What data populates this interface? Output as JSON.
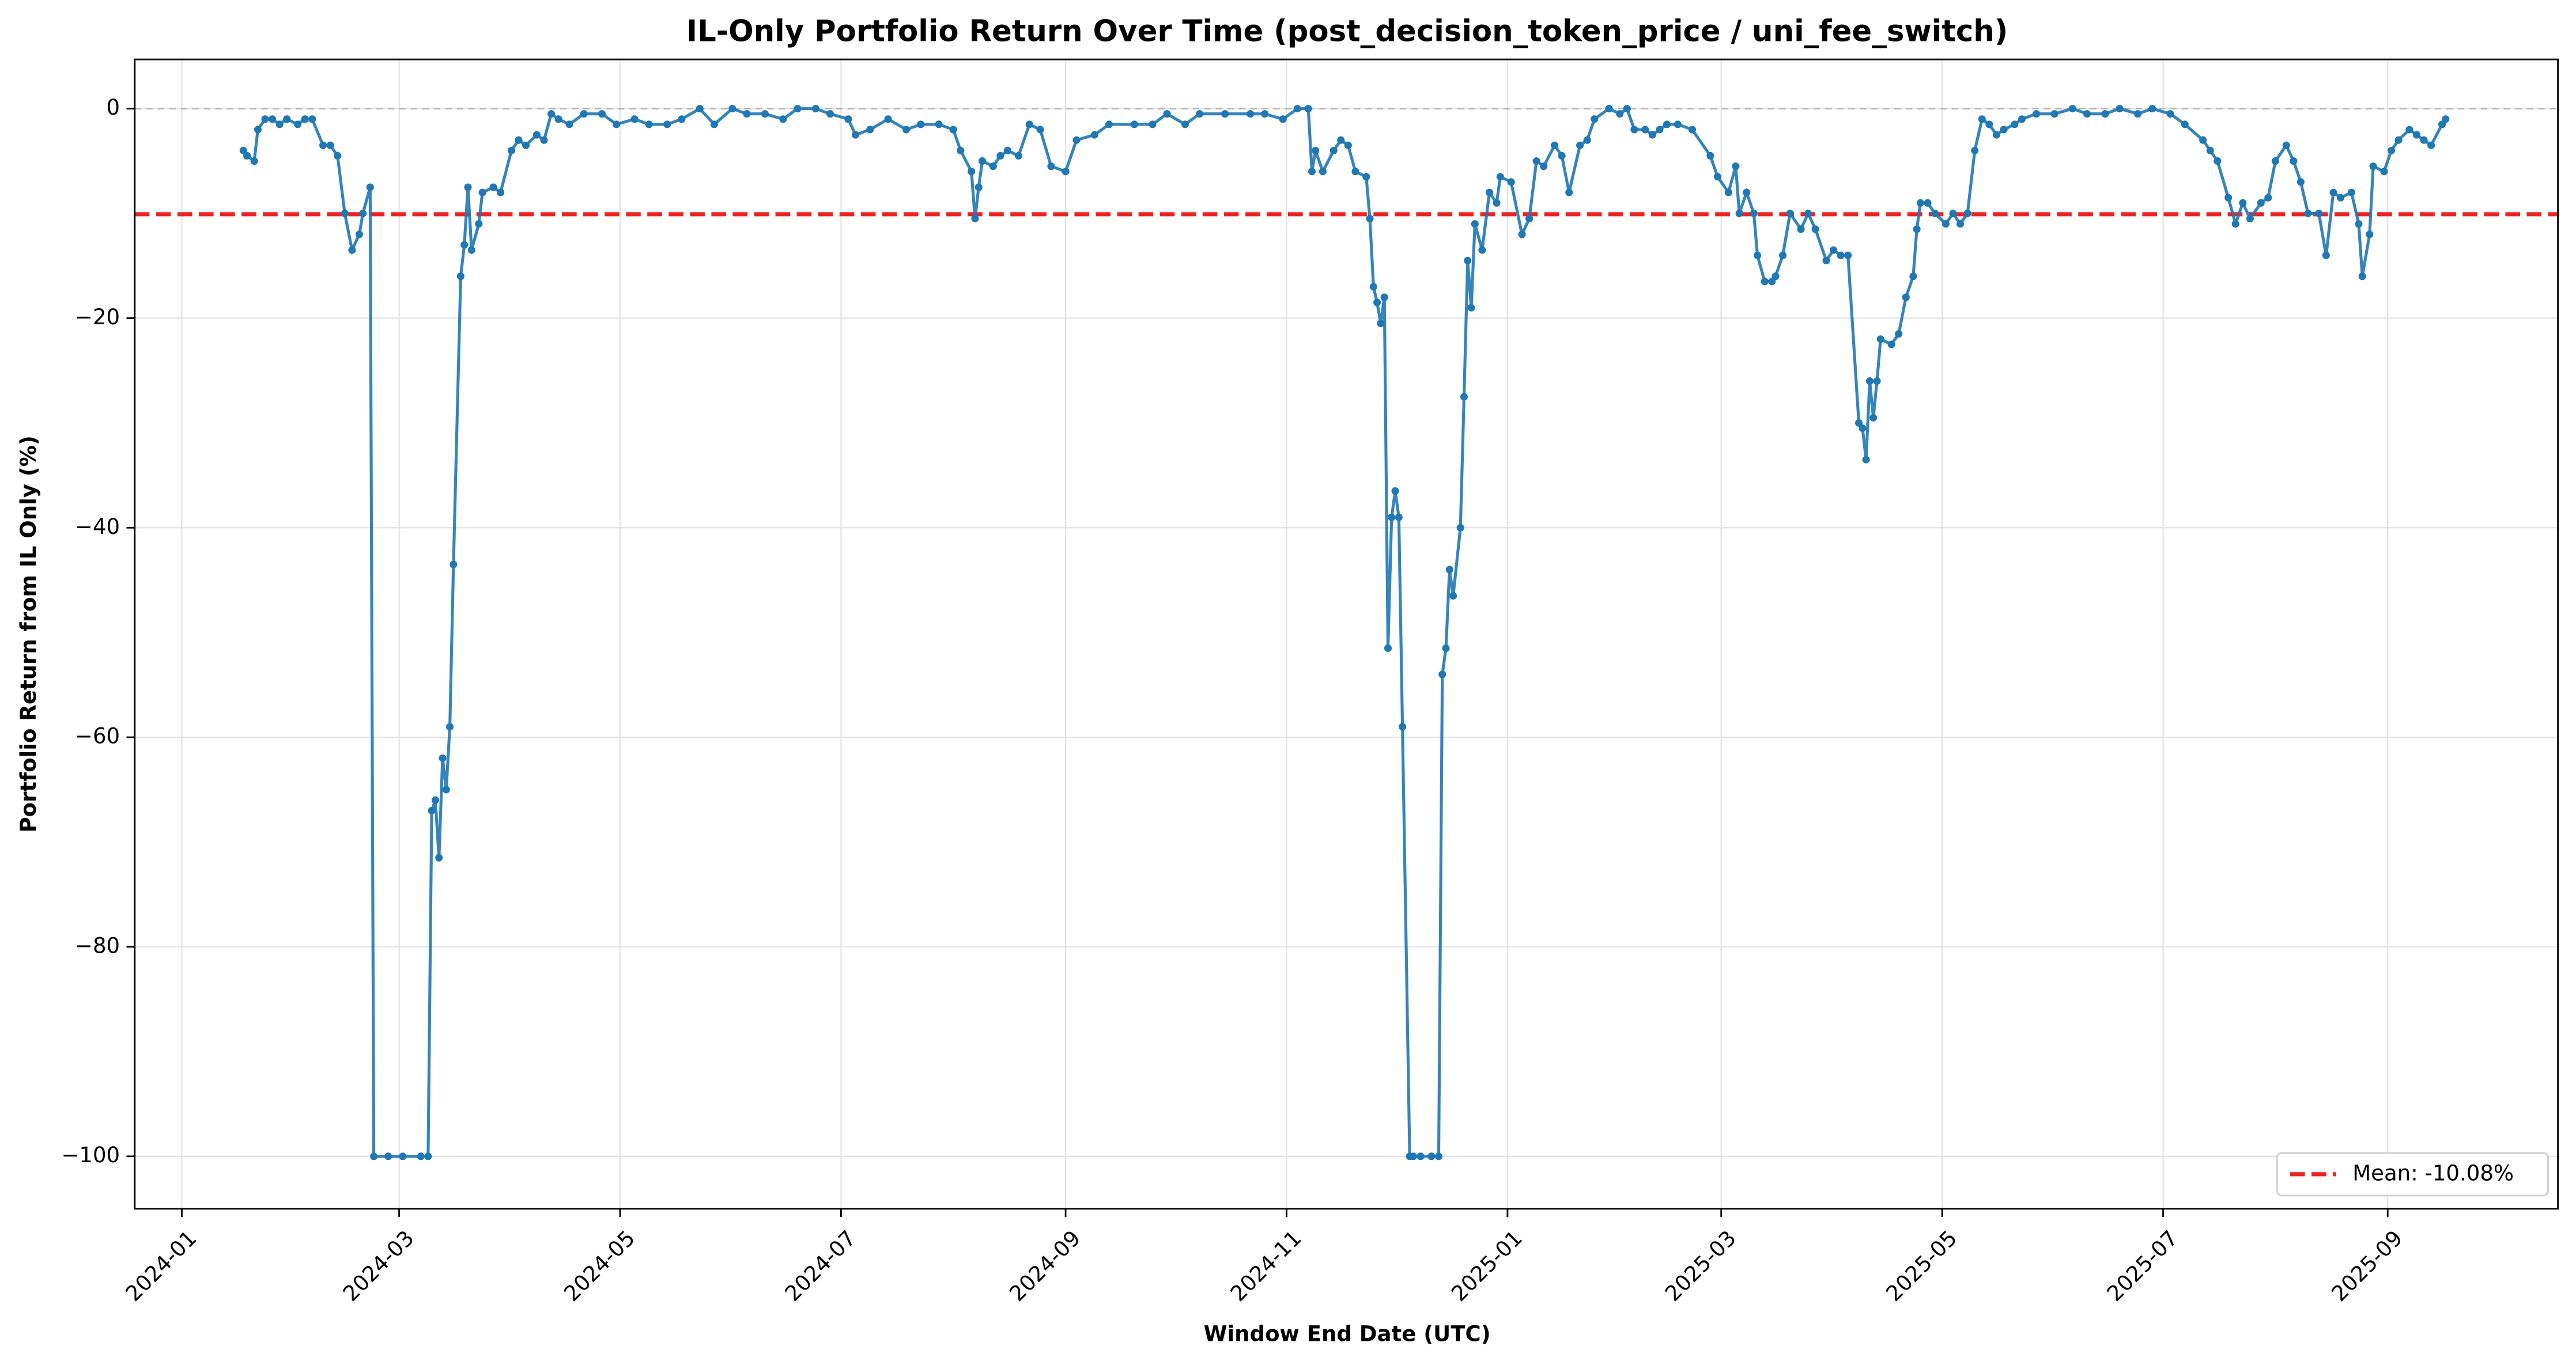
{
  "chart_data": {
    "type": "line",
    "title": "IL-Only Portfolio Return Over Time (post_decision_token_price / uni_fee_switch)",
    "x_label": "Window End Date (UTC)",
    "y_label": "Portfolio Return from IL Only (%)",
    "color": "#1f77b4",
    "markers": true,
    "grid": true,
    "legend": "lower right",
    "xlim": [
      "2023-12-19",
      "2025-10-18"
    ],
    "xticks": [
      {
        "value": "2024-01-01",
        "label": "2024-01"
      },
      {
        "value": "2024-03-01",
        "label": "2024-03"
      },
      {
        "value": "2024-05-01",
        "label": "2024-05"
      },
      {
        "value": "2024-07-01",
        "label": "2024-07"
      },
      {
        "value": "2024-09-01",
        "label": "2024-09"
      },
      {
        "value": "2024-11-01",
        "label": "2024-11"
      },
      {
        "value": "2025-01-01",
        "label": "2025-01"
      },
      {
        "value": "2025-03-01",
        "label": "2025-03"
      },
      {
        "value": "2025-05-01",
        "label": "2025-05"
      },
      {
        "value": "2025-07-01",
        "label": "2025-07"
      },
      {
        "value": "2025-09-01",
        "label": "2025-09"
      }
    ],
    "ylim": [
      -105,
      4.7
    ],
    "yticks": [
      {
        "value": -100,
        "label": "−100"
      },
      {
        "value": -80,
        "label": "−80"
      },
      {
        "value": -60,
        "label": "−60"
      },
      {
        "value": -40,
        "label": "−40"
      },
      {
        "value": -20,
        "label": "−20"
      },
      0
    ],
    "reference_line": {
      "value": 0,
      "color": "#b0b0b0"
    },
    "mean_line": {
      "value": -10.08,
      "label": "Mean: -10.08%",
      "color": "#ee2222"
    },
    "x": [
      "2024-01-18",
      "2024-01-19",
      "2024-01-21",
      "2024-01-22",
      "2024-01-24",
      "2024-01-26",
      "2024-01-28",
      "2024-01-30",
      "2024-02-02",
      "2024-02-04",
      "2024-02-06",
      "2024-02-09",
      "2024-02-11",
      "2024-02-13",
      "2024-02-15",
      "2024-02-17",
      "2024-02-19",
      "2024-02-20",
      "2024-02-22",
      "2024-02-23",
      "2024-02-27",
      "2024-03-02",
      "2024-03-07",
      "2024-03-09",
      "2024-03-10",
      "2024-03-11",
      "2024-03-12",
      "2024-03-13",
      "2024-03-14",
      "2024-03-15",
      "2024-03-16",
      "2024-03-18",
      "2024-03-19",
      "2024-03-20",
      "2024-03-21",
      "2024-03-23",
      "2024-03-24",
      "2024-03-27",
      "2024-03-29",
      "2024-04-01",
      "2024-04-03",
      "2024-04-05",
      "2024-04-08",
      "2024-04-10",
      "2024-04-12",
      "2024-04-14",
      "2024-04-17",
      "2024-04-21",
      "2024-04-26",
      "2024-04-30",
      "2024-05-05",
      "2024-05-09",
      "2024-05-14",
      "2024-05-18",
      "2024-05-23",
      "2024-05-27",
      "2024-06-01",
      "2024-06-05",
      "2024-06-10",
      "2024-06-15",
      "2024-06-19",
      "2024-06-24",
      "2024-06-28",
      "2024-07-03",
      "2024-07-05",
      "2024-07-09",
      "2024-07-14",
      "2024-07-19",
      "2024-07-23",
      "2024-07-28",
      "2024-08-01",
      "2024-08-03",
      "2024-08-06",
      "2024-08-07",
      "2024-08-08",
      "2024-08-09",
      "2024-08-12",
      "2024-08-14",
      "2024-08-16",
      "2024-08-19",
      "2024-08-22",
      "2024-08-25",
      "2024-08-28",
      "2024-09-01",
      "2024-09-04",
      "2024-09-09",
      "2024-09-13",
      "2024-09-20",
      "2024-09-25",
      "2024-09-29",
      "2024-10-04",
      "2024-10-08",
      "2024-10-15",
      "2024-10-22",
      "2024-10-26",
      "2024-10-31",
      "2024-11-04",
      "2024-11-07",
      "2024-11-08",
      "2024-11-09",
      "2024-11-11",
      "2024-11-14",
      "2024-11-16",
      "2024-11-18",
      "2024-11-20",
      "2024-11-23",
      "2024-11-24",
      "2024-11-25",
      "2024-11-26",
      "2024-11-27",
      "2024-11-28",
      "2024-11-29",
      "2024-11-30",
      "2024-12-01",
      "2024-12-02",
      "2024-12-03",
      "2024-12-05",
      "2024-12-06",
      "2024-12-08",
      "2024-12-11",
      "2024-12-13",
      "2024-12-14",
      "2024-12-15",
      "2024-12-16",
      "2024-12-17",
      "2024-12-19",
      "2024-12-20",
      "2024-12-21",
      "2024-12-22",
      "2024-12-23",
      "2024-12-25",
      "2024-12-27",
      "2024-12-29",
      "2024-12-30",
      "2025-01-02",
      "2025-01-05",
      "2025-01-07",
      "2025-01-09",
      "2025-01-11",
      "2025-01-14",
      "2025-01-16",
      "2025-01-18",
      "2025-01-21",
      "2025-01-23",
      "2025-01-25",
      "2025-01-29",
      "2025-02-01",
      "2025-02-03",
      "2025-02-05",
      "2025-02-08",
      "2025-02-10",
      "2025-02-12",
      "2025-02-14",
      "2025-02-17",
      "2025-02-21",
      "2025-02-26",
      "2025-02-28",
      "2025-03-03",
      "2025-03-05",
      "2025-03-06",
      "2025-03-08",
      "2025-03-10",
      "2025-03-11",
      "2025-03-13",
      "2025-03-15",
      "2025-03-16",
      "2025-03-18",
      "2025-03-20",
      "2025-03-23",
      "2025-03-25",
      "2025-03-27",
      "2025-03-30",
      "2025-04-01",
      "2025-04-03",
      "2025-04-05",
      "2025-04-08",
      "2025-04-09",
      "2025-04-10",
      "2025-04-11",
      "2025-04-12",
      "2025-04-13",
      "2025-04-14",
      "2025-04-17",
      "2025-04-19",
      "2025-04-21",
      "2025-04-23",
      "2025-04-24",
      "2025-04-25",
      "2025-04-27",
      "2025-04-29",
      "2025-05-02",
      "2025-05-04",
      "2025-05-06",
      "2025-05-08",
      "2025-05-10",
      "2025-05-12",
      "2025-05-14",
      "2025-05-16",
      "2025-05-18",
      "2025-05-21",
      "2025-05-23",
      "2025-05-27",
      "2025-06-01",
      "2025-06-06",
      "2025-06-10",
      "2025-06-15",
      "2025-06-19",
      "2025-06-24",
      "2025-06-28",
      "2025-07-03",
      "2025-07-07",
      "2025-07-12",
      "2025-07-14",
      "2025-07-16",
      "2025-07-19",
      "2025-07-21",
      "2025-07-23",
      "2025-07-25",
      "2025-07-28",
      "2025-07-30",
      "2025-08-01",
      "2025-08-04",
      "2025-08-06",
      "2025-08-08",
      "2025-08-10",
      "2025-08-13",
      "2025-08-15",
      "2025-08-17",
      "2025-08-19",
      "2025-08-22",
      "2025-08-24",
      "2025-08-25",
      "2025-08-27",
      "2025-08-28",
      "2025-08-31",
      "2025-09-02",
      "2025-09-04",
      "2025-09-07",
      "2025-09-09",
      "2025-09-11",
      "2025-09-13",
      "2025-09-16",
      "2025-09-17"
    ],
    "values": [
      -4,
      -4.5,
      -5,
      -2,
      -1,
      -1,
      -1.5,
      -1,
      -1.5,
      -1,
      -1,
      -3.5,
      -3.5,
      -4.5,
      -10,
      -13.5,
      -12,
      -10,
      -7.5,
      -100,
      -100,
      -100,
      -100,
      -100,
      -67,
      -66,
      -71.5,
      -62,
      -65,
      -59,
      -43.5,
      -16,
      -13,
      -7.5,
      -13.5,
      -11,
      -8,
      -7.5,
      -8,
      -4,
      -3,
      -3.5,
      -2.5,
      -3,
      -0.5,
      -1,
      -1.5,
      -0.5,
      -0.5,
      -1.5,
      -1,
      -1.5,
      -1.5,
      -1,
      0,
      -1.5,
      0,
      -0.5,
      -0.5,
      -1,
      0,
      0,
      -0.5,
      -1,
      -2.5,
      -2,
      -1,
      -2,
      -1.5,
      -1.5,
      -2,
      -4,
      -6,
      -10.5,
      -7.5,
      -5,
      -5.5,
      -4.5,
      -4,
      -4.5,
      -1.5,
      -2,
      -5.5,
      -6,
      -3,
      -2.5,
      -1.5,
      -1.5,
      -1.5,
      -0.5,
      -1.5,
      -0.5,
      -0.5,
      -0.5,
      -0.5,
      -1,
      0,
      0,
      -6,
      -4,
      -6,
      -4,
      -3,
      -3.5,
      -6,
      -6.5,
      -10.5,
      -17,
      -18.5,
      -20.5,
      -18,
      -51.5,
      -39,
      -36.5,
      -39,
      -59,
      -100,
      -100,
      -100,
      -100,
      -100,
      -54,
      -51.5,
      -44,
      -46.5,
      -40,
      -27.5,
      -14.5,
      -19,
      -11,
      -13.5,
      -8,
      -9,
      -6.5,
      -7,
      -12,
      -10.5,
      -5,
      -5.5,
      -3.5,
      -4.5,
      -8,
      -3.5,
      -3,
      -1,
      0,
      -0.5,
      0,
      -2,
      -2,
      -2.5,
      -2,
      -1.5,
      -1.5,
      -2,
      -4.5,
      -6.5,
      -8,
      -5.5,
      -10,
      -8,
      -10,
      -14,
      -16.5,
      -16.5,
      -16,
      -14,
      -10,
      -11.5,
      -10,
      -11.5,
      -14.5,
      -13.5,
      -14,
      -14,
      -30,
      -30.5,
      -33.5,
      -26,
      -29.5,
      -26,
      -22,
      -22.5,
      -21.5,
      -18,
      -16,
      -11.5,
      -9,
      -9,
      -10,
      -11,
      -10,
      -11,
      -10,
      -4,
      -1,
      -1.5,
      -2.5,
      -2,
      -1.5,
      -1,
      -0.5,
      -0.5,
      0,
      -0.5,
      -0.5,
      0,
      -0.5,
      0,
      -0.5,
      -1.5,
      -3,
      -4,
      -5,
      -8.5,
      -11,
      -9,
      -10.5,
      -9,
      -8.5,
      -5,
      -3.5,
      -5,
      -7,
      -10,
      -10,
      -14,
      -8,
      -8.5,
      -8,
      -11,
      -16,
      -12,
      -5.5,
      -6,
      -4,
      -3,
      -2,
      -2.5,
      -3,
      -3.5,
      -1.5,
      -1
    ]
  }
}
